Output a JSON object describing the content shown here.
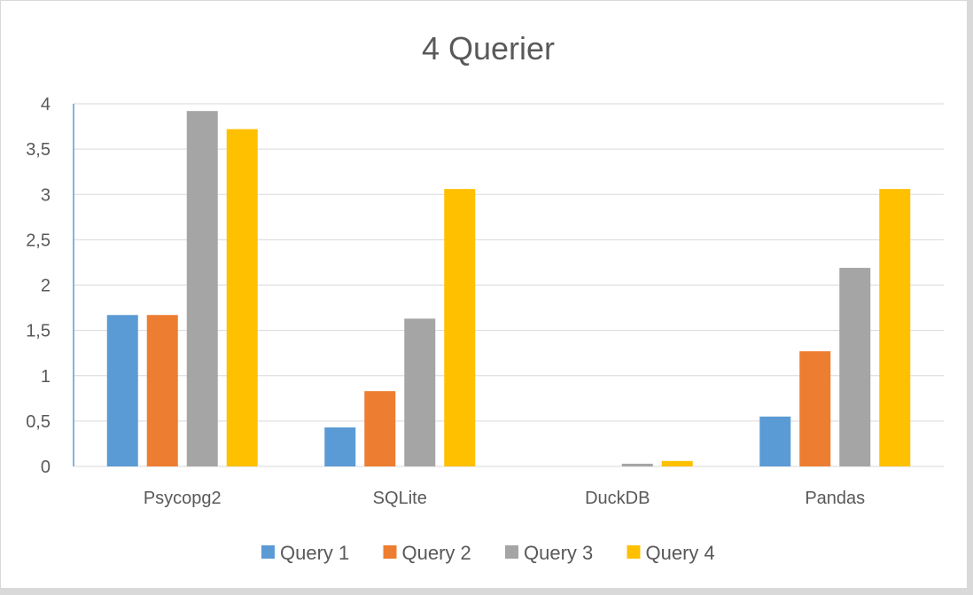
{
  "chart_data": {
    "type": "bar",
    "title": "4 Querier",
    "xlabel": "",
    "ylabel": "",
    "categories": [
      "Psycopg2",
      "SQLite",
      "DuckDB",
      "Pandas"
    ],
    "series": [
      {
        "name": "Query 1",
        "color": "#5B9BD5",
        "values": [
          1.67,
          0.43,
          0.0,
          0.55
        ]
      },
      {
        "name": "Query 2",
        "color": "#ED7D31",
        "values": [
          1.67,
          0.83,
          0.0,
          1.27
        ]
      },
      {
        "name": "Query 3",
        "color": "#A5A5A5",
        "values": [
          3.92,
          1.63,
          0.03,
          2.19
        ]
      },
      {
        "name": "Query 4",
        "color": "#FFC000",
        "values": [
          3.72,
          3.06,
          0.06,
          3.06
        ]
      }
    ],
    "ylim": [
      0,
      4
    ],
    "yticks": [
      0,
      0.5,
      1,
      1.5,
      2,
      2.5,
      3,
      3.5,
      4
    ],
    "ytick_labels": [
      "0",
      "0,5",
      "1",
      "1,5",
      "2",
      "2,5",
      "3",
      "3,5",
      "4"
    ],
    "grid": true,
    "legend_position": "bottom"
  }
}
